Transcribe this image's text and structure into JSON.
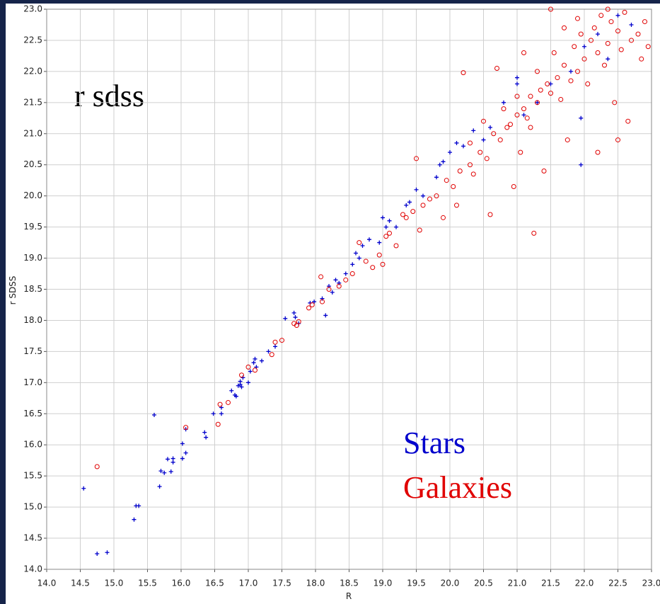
{
  "chart_data": {
    "type": "scatter",
    "xlabel": "R",
    "ylabel": "r SDSS",
    "annotation": "r sdss",
    "xlim": [
      14,
      23
    ],
    "ylim": [
      14,
      23
    ],
    "grid": true,
    "xticks": [
      {
        "value": 14,
        "label": "14.0"
      },
      14.5,
      {
        "value": 15,
        "label": "15.0"
      },
      15.5,
      {
        "value": 16,
        "label": "16.0"
      },
      16.5,
      {
        "value": 17,
        "label": "17.0"
      },
      17.5,
      {
        "value": 18,
        "label": "18.0"
      },
      18.5,
      {
        "value": 19,
        "label": "19.0"
      },
      19.5,
      {
        "value": 20,
        "label": "20.0"
      },
      20.5,
      {
        "value": 21,
        "label": "21.0"
      },
      21.5,
      {
        "value": 22,
        "label": "22.0"
      },
      22.5,
      {
        "value": 23,
        "label": "23.0"
      }
    ],
    "yticks": [
      {
        "value": 14,
        "label": "14.0"
      },
      14.5,
      {
        "value": 15,
        "label": "15.0"
      },
      15.5,
      {
        "value": 16,
        "label": "16.0"
      },
      16.5,
      {
        "value": 17,
        "label": "17.0"
      },
      17.5,
      {
        "value": 18,
        "label": "18.0"
      },
      18.5,
      {
        "value": 19,
        "label": "19.0"
      },
      19.5,
      {
        "value": 20,
        "label": "20.0"
      },
      20.5,
      {
        "value": 21,
        "label": "21.0"
      },
      21.5,
      {
        "value": 22,
        "label": "22.0"
      },
      22.5,
      {
        "value": 23,
        "label": "23.0"
      }
    ],
    "series": [
      {
        "name": "Stars",
        "color": "#0000cc",
        "marker": "plus",
        "x": [
          14.55,
          14.75,
          14.9,
          15.3,
          15.33,
          15.37,
          15.6,
          15.68,
          15.7,
          15.75,
          15.8,
          15.85,
          15.88,
          15.88,
          16.02,
          16.02,
          16.07,
          16.07,
          16.35,
          16.37,
          16.48,
          16.6,
          16.6,
          16.75,
          16.8,
          16.82,
          16.85,
          16.88,
          16.88,
          16.9,
          16.92,
          17.0,
          17.03,
          17.08,
          17.1,
          17.12,
          17.2,
          17.3,
          17.4,
          17.55,
          17.68,
          17.7,
          17.75,
          17.92,
          17.98,
          18.1,
          18.15,
          18.2,
          18.25,
          18.3,
          18.35,
          18.45,
          18.55,
          18.6,
          18.65,
          18.7,
          18.8,
          18.95,
          19.0,
          19.05,
          19.1,
          19.2,
          19.35,
          19.4,
          19.5,
          19.6,
          19.8,
          19.85,
          19.9,
          20.0,
          20.1,
          20.2,
          20.35,
          20.5,
          20.6,
          20.8,
          21.0,
          21.0,
          21.1,
          21.3,
          21.5,
          21.8,
          21.95,
          21.95,
          22.0,
          22.2,
          22.5,
          22.7,
          22.35
        ],
        "values": [
          15.3,
          14.25,
          14.27,
          14.8,
          15.02,
          15.02,
          16.48,
          15.33,
          15.58,
          15.55,
          15.77,
          15.57,
          15.72,
          15.78,
          16.02,
          15.78,
          15.87,
          16.25,
          16.2,
          16.12,
          16.5,
          16.5,
          16.6,
          16.87,
          16.8,
          16.78,
          16.95,
          16.97,
          17.02,
          16.93,
          17.08,
          17.0,
          17.18,
          17.32,
          17.38,
          17.25,
          17.35,
          17.5,
          17.58,
          18.03,
          18.12,
          18.05,
          17.95,
          18.28,
          18.3,
          18.35,
          18.08,
          18.55,
          18.45,
          18.65,
          18.6,
          18.75,
          18.9,
          19.08,
          19.0,
          19.2,
          19.3,
          19.25,
          19.65,
          19.5,
          19.6,
          19.5,
          19.85,
          19.9,
          20.1,
          20.0,
          20.3,
          20.5,
          20.55,
          20.7,
          20.85,
          20.8,
          21.05,
          20.9,
          21.1,
          21.5,
          21.9,
          21.8,
          21.3,
          21.5,
          21.8,
          22.0,
          21.25,
          20.5,
          22.4,
          22.6,
          22.9,
          22.75,
          22.2
        ]
      },
      {
        "name": "Galaxies",
        "color": "#e00000",
        "marker": "circle",
        "x": [
          14.75,
          16.07,
          16.55,
          16.58,
          16.7,
          16.9,
          17.0,
          17.1,
          17.35,
          17.4,
          17.5,
          17.68,
          17.75,
          17.72,
          17.9,
          17.95,
          18.08,
          18.1,
          18.2,
          18.35,
          18.45,
          18.55,
          18.65,
          18.75,
          18.85,
          18.95,
          19.0,
          19.05,
          19.1,
          19.2,
          19.3,
          19.35,
          19.45,
          19.5,
          19.55,
          19.6,
          19.7,
          19.8,
          19.9,
          19.95,
          20.05,
          20.1,
          20.15,
          20.2,
          20.3,
          20.35,
          20.45,
          20.55,
          20.6,
          20.65,
          20.7,
          20.75,
          20.85,
          20.9,
          20.95,
          21.0,
          21.05,
          21.1,
          21.15,
          21.2,
          21.25,
          21.3,
          21.35,
          21.4,
          21.45,
          21.5,
          21.55,
          21.6,
          21.65,
          21.7,
          21.75,
          21.8,
          21.85,
          21.9,
          21.95,
          22.0,
          22.05,
          22.1,
          22.15,
          22.2,
          22.25,
          22.3,
          22.35,
          22.4,
          22.45,
          22.5,
          22.55,
          22.6,
          22.65,
          22.7,
          22.8,
          22.85,
          22.9,
          21.9,
          21.7,
          21.3,
          21.0,
          20.8,
          22.2,
          22.5,
          21.5,
          20.3,
          20.5,
          21.2,
          22.95,
          22.35,
          21.1
        ],
        "values": [
          15.65,
          16.28,
          16.33,
          16.65,
          16.68,
          17.12,
          17.25,
          17.2,
          17.45,
          17.65,
          17.68,
          17.95,
          17.98,
          17.92,
          18.2,
          18.25,
          18.7,
          18.3,
          18.5,
          18.55,
          18.65,
          18.75,
          19.25,
          18.95,
          18.85,
          19.05,
          18.9,
          19.35,
          19.4,
          19.2,
          19.7,
          19.65,
          19.75,
          20.6,
          19.45,
          19.85,
          19.95,
          20.0,
          19.65,
          20.25,
          20.15,
          19.85,
          20.4,
          21.98,
          20.5,
          20.35,
          20.7,
          20.6,
          19.7,
          21.0,
          22.05,
          20.9,
          21.1,
          21.15,
          20.15,
          21.3,
          20.7,
          21.4,
          21.25,
          21.6,
          19.4,
          21.5,
          21.7,
          20.4,
          21.8,
          21.65,
          22.3,
          21.9,
          21.55,
          22.1,
          20.9,
          21.85,
          22.4,
          22.0,
          22.6,
          22.2,
          21.8,
          22.5,
          22.7,
          22.3,
          22.9,
          22.1,
          22.45,
          22.8,
          21.5,
          22.65,
          22.35,
          22.95,
          21.2,
          22.5,
          22.6,
          22.2,
          22.8,
          22.85,
          22.7,
          22.0,
          21.6,
          21.4,
          20.7,
          20.9,
          23.0,
          20.85,
          21.2,
          21.1,
          22.4,
          23.0,
          22.3
        ]
      }
    ]
  }
}
